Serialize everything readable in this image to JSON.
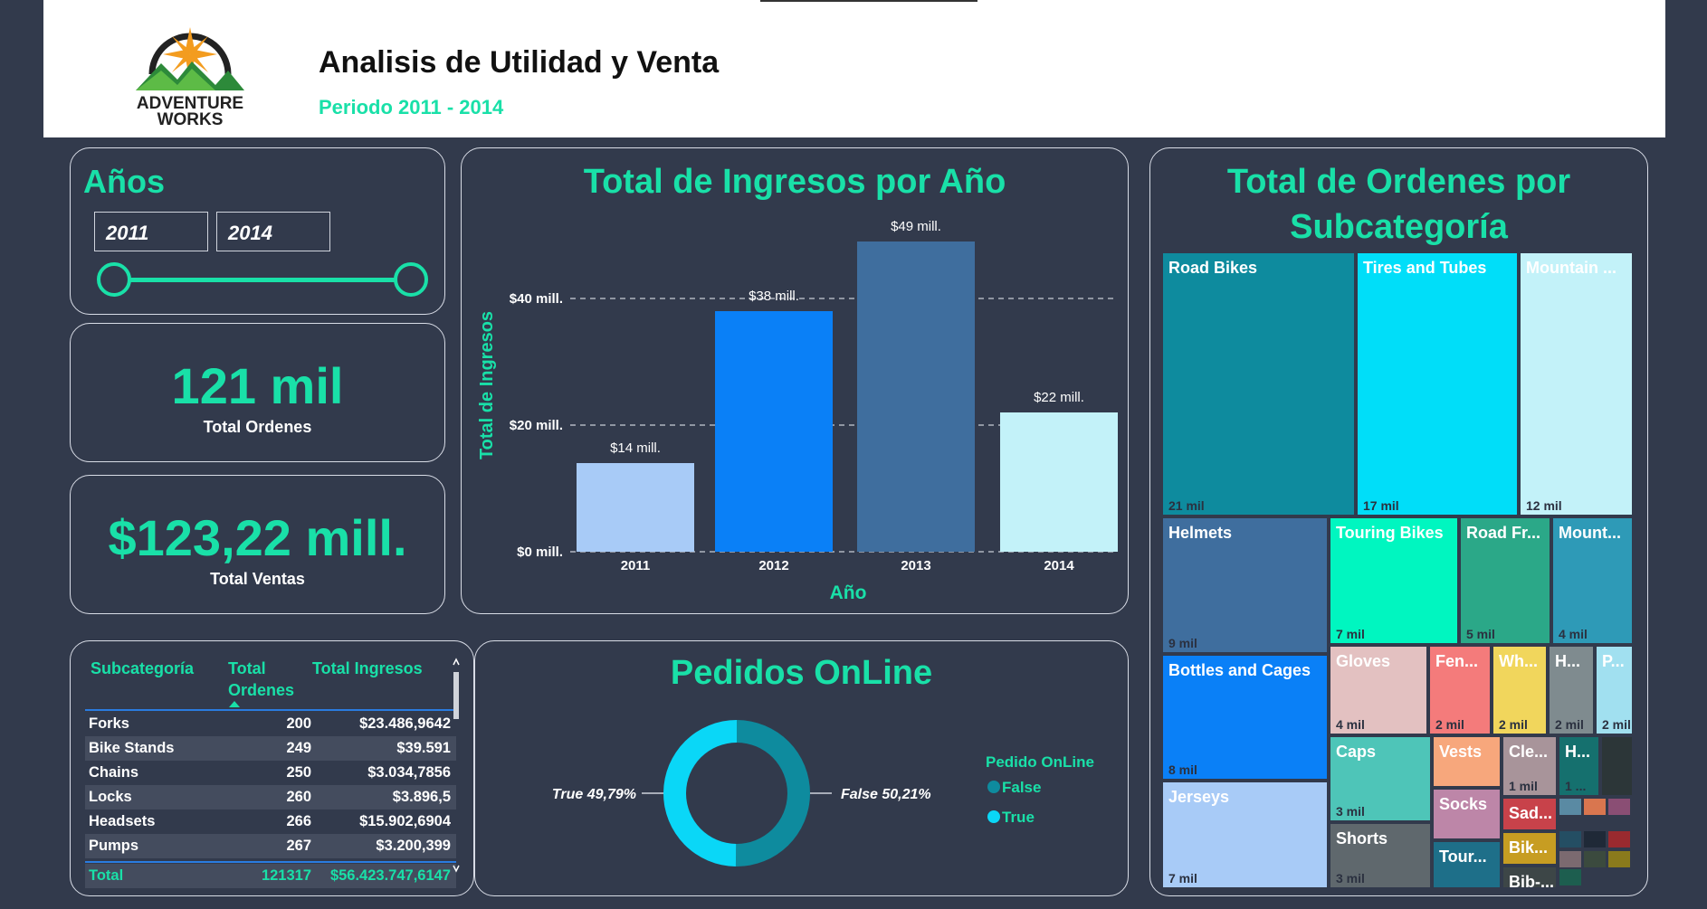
{
  "header": {
    "logo_text_1": "ADVENTURE",
    "logo_text_2": "WORKS",
    "title": "Analisis de Utilidad y Venta",
    "subtitle": "Periodo 2011 - 2014"
  },
  "years": {
    "title": "Años",
    "from": "2011",
    "to": "2014"
  },
  "kpi_orders": {
    "value": "121 mil",
    "label": "Total Ordenes"
  },
  "kpi_sales": {
    "value": "$123,22 mill.",
    "label": "Total Ventas"
  },
  "revenue_chart": {
    "title": "Total de Ingresos por Año",
    "ylabel": "Total de Ingresos",
    "xlabel": "Año",
    "yticks": [
      "$0 mill.",
      "$20 mill.",
      "$40 mill."
    ],
    "data_labels": [
      "$14 mill.",
      "$38 mill.",
      "$49 mill.",
      "$22 mill."
    ]
  },
  "chart_data": {
    "type": "bar",
    "title": "Total de Ingresos por Año",
    "xlabel": "Año",
    "ylabel": "Total de Ingresos",
    "categories": [
      "2011",
      "2012",
      "2013",
      "2014"
    ],
    "values": [
      14,
      38,
      49,
      22
    ],
    "unit": "mill.",
    "ylim": [
      0,
      52
    ],
    "colors": [
      "#a8cbf7",
      "#0a80f7",
      "#3f6e9e",
      "#c3f2f9"
    ],
    "grid": true
  },
  "table": {
    "headers": [
      "Subcategoría",
      "Total Ordenes",
      "Total Ingresos"
    ],
    "rows": [
      [
        "Forks",
        "200",
        "$23.486,9642"
      ],
      [
        "Bike Stands",
        "249",
        "$39.591"
      ],
      [
        "Chains",
        "250",
        "$3.034,7856"
      ],
      [
        "Locks",
        "260",
        "$3.896,5"
      ],
      [
        "Headsets",
        "266",
        "$15.902,6904"
      ],
      [
        "Pumps",
        "267",
        "$3.200,399"
      ]
    ],
    "total": [
      "Total",
      "121317",
      "$56.423.747,6147"
    ]
  },
  "online": {
    "title": "Pedidos OnLine",
    "legend_title": "Pedido OnLine",
    "false_label": "False",
    "true_label": "True",
    "false_pct": "False 50,21%",
    "true_pct": "True 49,79%",
    "false_value": 50.21,
    "true_value": 49.79,
    "false_color": "#0e8b9e",
    "true_color": "#0ad7f7"
  },
  "treemap": {
    "title_1": "Total de Ordenes por",
    "title_2": "Subcategoría",
    "items": [
      {
        "name": "Road Bikes",
        "value": "21 mil",
        "color": "#0e8b9e"
      },
      {
        "name": "Tires and Tubes",
        "value": "17 mil",
        "color": "#00def9"
      },
      {
        "name": "Mountain ...",
        "value": "12 mil",
        "color": "#c3f2f9"
      },
      {
        "name": "Helmets",
        "value": "9 mil",
        "color": "#3f6e9e"
      },
      {
        "name": "Touring Bikes",
        "value": "7 mil",
        "color": "#00f6c0"
      },
      {
        "name": "Road Fr...",
        "value": "5 mil",
        "color": "#2ba888"
      },
      {
        "name": "Mount...",
        "value": "4 mil",
        "color": "#2e9ab7"
      },
      {
        "name": "Bottles and Cages",
        "value": "8 mil",
        "color": "#0a80f7"
      },
      {
        "name": "Gloves",
        "value": "4 mil",
        "color": "#e3c1c1"
      },
      {
        "name": "Fen...",
        "value": "2 mil",
        "color": "#f47b7b"
      },
      {
        "name": "Wh...",
        "value": "2 mil",
        "color": "#f1d65c"
      },
      {
        "name": "H...",
        "value": "2 mil",
        "color": "#7f8b8f"
      },
      {
        "name": "P...",
        "value": "2 mil",
        "color": "#a1e0f0"
      },
      {
        "name": "Jerseys",
        "value": "7 mil",
        "color": "#a8cbf7"
      },
      {
        "name": "Caps",
        "value": "3 mil",
        "color": "#4ec5b8"
      },
      {
        "name": "Vests",
        "value": "",
        "color": "#f7a77c"
      },
      {
        "name": "Cle...",
        "value": "1 mil",
        "color": "#a8949a"
      },
      {
        "name": "H...",
        "value": "1 ...",
        "color": "#15706e"
      },
      {
        "name": "Socks",
        "value": "",
        "color": "#bd86a8"
      },
      {
        "name": "Sad...",
        "value": "",
        "color": "#c8424a"
      },
      {
        "name": "Shorts",
        "value": "3 mil",
        "color": "#5f686d"
      },
      {
        "name": "Tour...",
        "value": "",
        "color": "#1e6f89"
      },
      {
        "name": "Bik...",
        "value": "",
        "color": "#c79d22"
      },
      {
        "name": "Bib-...",
        "value": "",
        "color": "#3d4647"
      }
    ]
  }
}
